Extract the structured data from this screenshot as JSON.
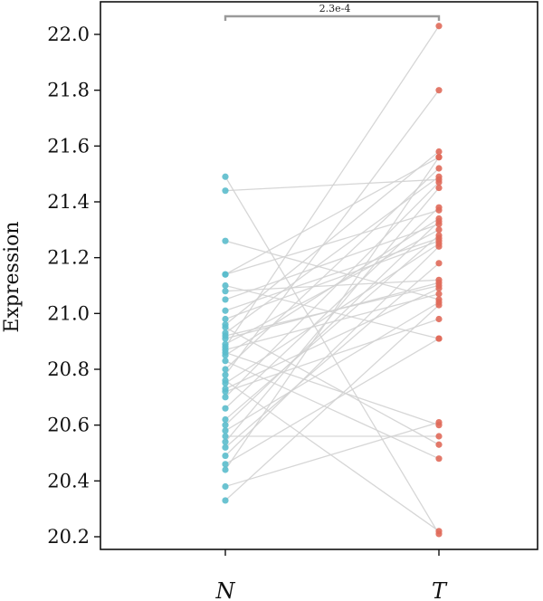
{
  "chart_data": {
    "type": "paired-dot",
    "ylabel": "Expression",
    "categories": [
      "N",
      "T"
    ],
    "ylim": [
      20.16,
      22.1
    ],
    "yticks": [
      20.2,
      20.4,
      20.6,
      20.8,
      21.0,
      21.2,
      21.4,
      21.6,
      21.8,
      22.0
    ],
    "ytick_labels": [
      "20.2",
      "20.4",
      "20.6",
      "20.8",
      "21.0",
      "21.2",
      "21.4",
      "21.6",
      "21.8",
      "22.0"
    ],
    "significance": {
      "label": "2.3e-4",
      "between": [
        "N",
        "T"
      ]
    },
    "colors": {
      "N": "#5bbccc",
      "T": "#e06a5a",
      "line": "#d2d2d2",
      "bracket": "#9a9a9a"
    },
    "pairs": [
      [
        21.49,
        20.21
      ],
      [
        21.44,
        21.48
      ],
      [
        21.26,
        21.05
      ],
      [
        21.14,
        21.37
      ],
      [
        21.14,
        21.56
      ],
      [
        21.1,
        20.91
      ],
      [
        21.05,
        21.32
      ],
      [
        21.01,
        21.27
      ],
      [
        20.96,
        21.58
      ],
      [
        20.95,
        20.53
      ],
      [
        20.93,
        21.49
      ],
      [
        20.91,
        21.11
      ],
      [
        20.89,
        21.3
      ],
      [
        20.88,
        22.03
      ],
      [
        20.87,
        21.07
      ],
      [
        20.86,
        20.6
      ],
      [
        20.85,
        21.34
      ],
      [
        20.83,
        20.48
      ],
      [
        20.8,
        21.52
      ],
      [
        20.78,
        21.8
      ],
      [
        20.76,
        20.22
      ],
      [
        20.75,
        21.25
      ],
      [
        20.73,
        21.09
      ],
      [
        20.72,
        20.98
      ],
      [
        20.66,
        21.38
      ],
      [
        20.62,
        21.28
      ],
      [
        20.58,
        21.04
      ],
      [
        20.56,
        20.56
      ],
      [
        20.54,
        21.45
      ],
      [
        20.52,
        21.18
      ],
      [
        20.49,
        21.24
      ],
      [
        20.46,
        20.91
      ],
      [
        20.44,
        21.56
      ],
      [
        20.38,
        20.61
      ],
      [
        20.33,
        21.03
      ],
      [
        20.92,
        21.1
      ],
      [
        20.7,
        21.47
      ],
      [
        20.98,
        21.26
      ],
      [
        20.6,
        21.33
      ],
      [
        21.08,
        21.12
      ]
    ]
  }
}
